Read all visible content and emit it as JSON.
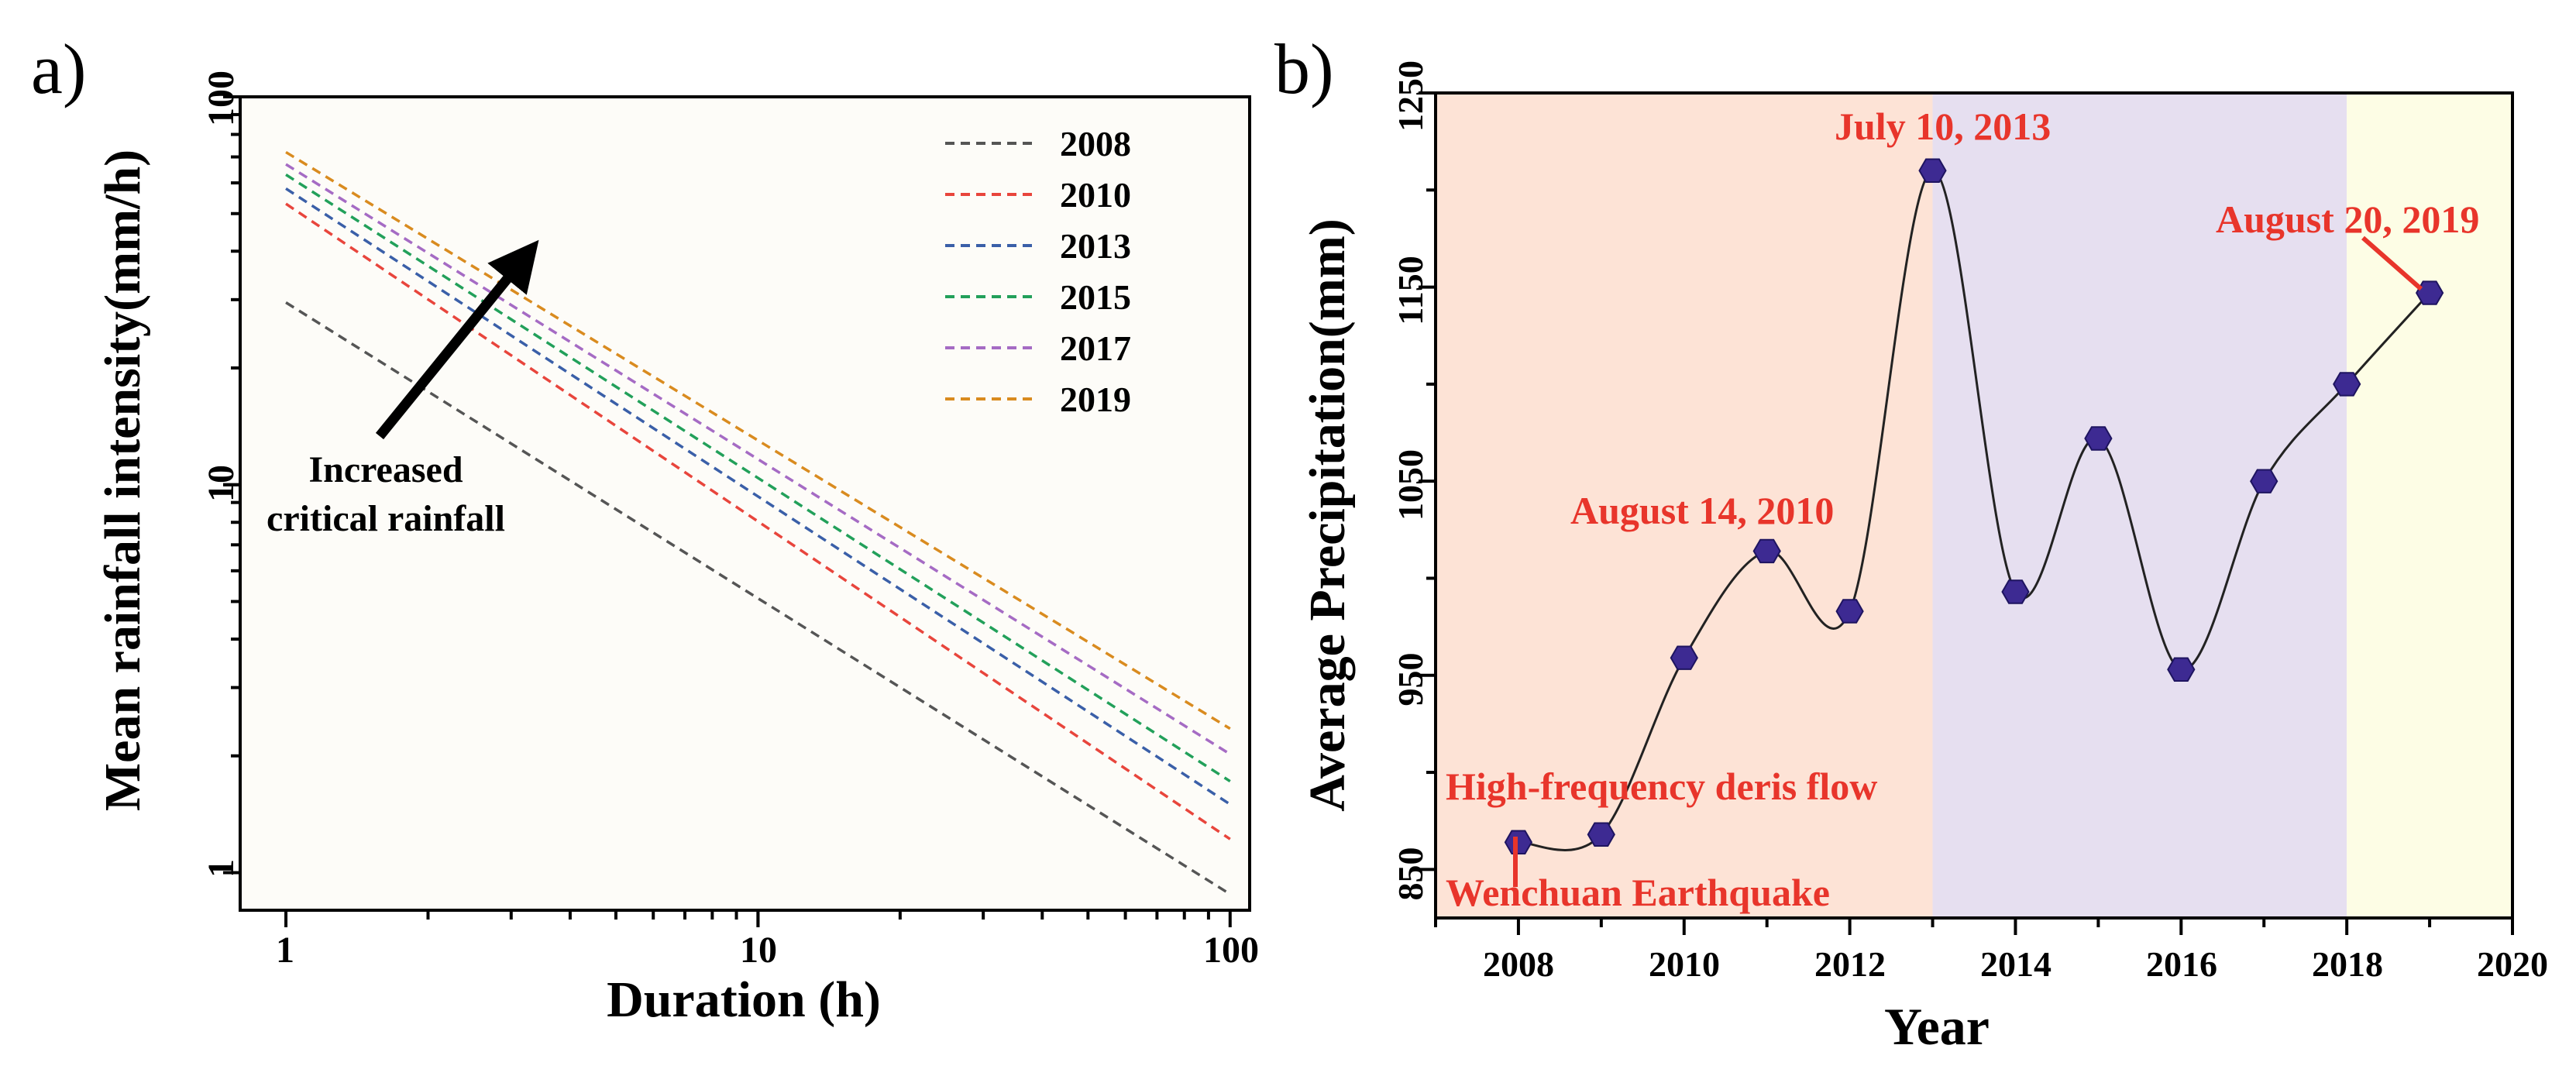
{
  "chart_data": [
    {
      "type": "line",
      "panel_label": "a)",
      "xlabel": "Duration (h)",
      "ylabel": "Mean rainfall intensity(mm/h)",
      "xscale": "log",
      "yscale": "log",
      "xlim": [
        0.8,
        110
      ],
      "ylim": [
        0.8,
        100
      ],
      "x_ticks": [
        1,
        10,
        100
      ],
      "x_tick_labels": [
        "1",
        "10",
        "100"
      ],
      "y_ticks": [
        1,
        10,
        100
      ],
      "y_tick_labels": [
        "1",
        "10",
        "100"
      ],
      "grid": false,
      "legend_position": "top-right",
      "line_style": "dashed",
      "series": [
        {
          "name": "2008",
          "color": "#555555",
          "x": [
            1,
            100
          ],
          "values": [
            29.5,
            0.88
          ]
        },
        {
          "name": "2010",
          "color": "#e8453c",
          "x": [
            1,
            100
          ],
          "values": [
            53,
            1.22
          ]
        },
        {
          "name": "2013",
          "color": "#3a5fa8",
          "x": [
            1,
            100
          ],
          "values": [
            58,
            1.5
          ]
        },
        {
          "name": "2015",
          "color": "#22a05a",
          "x": [
            1,
            100
          ],
          "values": [
            63,
            1.72
          ]
        },
        {
          "name": "2017",
          "color": "#a56bc4",
          "x": [
            1,
            100
          ],
          "values": [
            67,
            2.02
          ]
        },
        {
          "name": "2019",
          "color": "#d98b1f",
          "x": [
            1,
            100
          ],
          "values": [
            72,
            2.35
          ]
        }
      ],
      "annotation": {
        "lines": [
          "Increased",
          "critical rainfall"
        ],
        "direction": "arrow pointing toward upper-right"
      }
    },
    {
      "type": "line",
      "panel_label": "b)",
      "xlabel": "Year",
      "ylabel": "Average Precipitation(mm)",
      "xlim": [
        2007,
        2020
      ],
      "ylim": [
        825,
        1250
      ],
      "x_ticks": [
        2008,
        2010,
        2012,
        2014,
        2016,
        2018,
        2020
      ],
      "x_tick_labels": [
        "2008",
        "2010",
        "2012",
        "2014",
        "2016",
        "2018",
        "2020"
      ],
      "y_ticks": [
        850,
        950,
        1050,
        1150,
        1250
      ],
      "y_tick_labels": [
        "850",
        "950",
        "1050",
        "1150",
        "1250"
      ],
      "grid": false,
      "marker": "hexagon",
      "line_color": "#222222",
      "marker_color": "#3d2a92",
      "x": [
        2008,
        2009,
        2010,
        2011,
        2012,
        2013,
        2014,
        2015,
        2016,
        2017,
        2018,
        2019
      ],
      "values": [
        864,
        868,
        959,
        1014,
        983,
        1210,
        993,
        1072,
        953,
        1050,
        1100,
        1147
      ],
      "shaded_regions": [
        {
          "from": 2007,
          "to": 2013,
          "color": "#fde3d6"
        },
        {
          "from": 2013,
          "to": 2018,
          "color": "#e6dff0"
        },
        {
          "from": 2018,
          "to": 2020,
          "color": "#fdfde5"
        }
      ],
      "annotations": [
        {
          "text": "July 10, 2013",
          "color": "#e8352b"
        },
        {
          "text": "August 14, 2010",
          "color": "#e8352b"
        },
        {
          "text": "August 20, 2019",
          "color": "#e8352b"
        },
        {
          "text": "High-frequency deris flow",
          "color": "#e8352b"
        },
        {
          "text": "Wenchuan Earthquake",
          "color": "#e8352b"
        }
      ]
    }
  ]
}
